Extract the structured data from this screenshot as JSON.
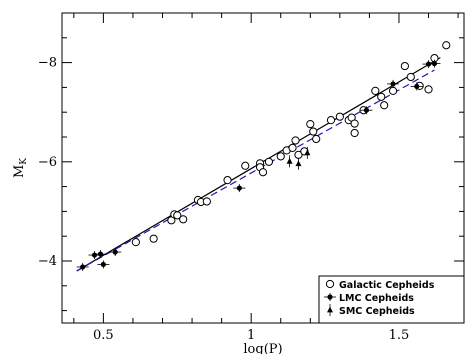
{
  "chart_data": {
    "type": "scatter",
    "xlabel": "log(P)",
    "ylabel": "M",
    "ylabel_sub": "K",
    "xlim": [
      0.36,
      1.72
    ],
    "ylim": [
      -2.75,
      -9.0
    ],
    "y_inverted": true,
    "x_ticks": [
      {
        "value": 0.5,
        "label": "0.5"
      },
      {
        "value": 1.0,
        "label": "1"
      },
      {
        "value": 1.5,
        "label": "1.5"
      }
    ],
    "y_ticks": [
      {
        "value": -4,
        "label": "−4"
      },
      {
        "value": -6,
        "label": "−6"
      },
      {
        "value": -8,
        "label": "−8"
      }
    ],
    "legend_placement": "bottom-right",
    "series": [
      {
        "name": "Galactic Cepheids",
        "marker": "open-circle",
        "points": [
          [
            0.61,
            -4.38
          ],
          [
            0.67,
            -4.45
          ],
          [
            0.73,
            -4.82
          ],
          [
            0.74,
            -4.94
          ],
          [
            0.75,
            -4.92
          ],
          [
            0.77,
            -4.84
          ],
          [
            0.82,
            -5.23
          ],
          [
            0.83,
            -5.19
          ],
          [
            0.85,
            -5.2
          ],
          [
            0.92,
            -5.63
          ],
          [
            0.98,
            -5.92
          ],
          [
            1.03,
            -5.97
          ],
          [
            1.03,
            -5.89
          ],
          [
            1.04,
            -5.79
          ],
          [
            1.06,
            -6.0
          ],
          [
            1.1,
            -6.11
          ],
          [
            1.12,
            -6.23
          ],
          [
            1.14,
            -6.28
          ],
          [
            1.15,
            -6.43
          ],
          [
            1.16,
            -6.14
          ],
          [
            1.18,
            -6.21
          ],
          [
            1.2,
            -6.76
          ],
          [
            1.21,
            -6.61
          ],
          [
            1.22,
            -6.46
          ],
          [
            1.27,
            -6.84
          ],
          [
            1.3,
            -6.91
          ],
          [
            1.33,
            -6.84
          ],
          [
            1.34,
            -6.89
          ],
          [
            1.35,
            -6.77
          ],
          [
            1.35,
            -6.58
          ],
          [
            1.38,
            -7.04
          ],
          [
            1.42,
            -7.43
          ],
          [
            1.44,
            -7.31
          ],
          [
            1.45,
            -7.14
          ],
          [
            1.48,
            -7.43
          ],
          [
            1.52,
            -7.93
          ],
          [
            1.54,
            -7.71
          ],
          [
            1.57,
            -7.53
          ],
          [
            1.6,
            -7.46
          ],
          [
            1.62,
            -8.09
          ],
          [
            1.66,
            -8.35
          ]
        ]
      },
      {
        "name": "LMC Cepheids",
        "marker": "filled-circle",
        "points": [
          [
            0.43,
            -3.88
          ],
          [
            0.47,
            -4.12
          ],
          [
            0.49,
            -4.14
          ],
          [
            0.5,
            -3.93
          ],
          [
            0.54,
            -4.18
          ],
          [
            0.96,
            -5.47
          ],
          [
            1.39,
            -7.04
          ],
          [
            1.48,
            -7.57
          ],
          [
            1.56,
            -7.52
          ],
          [
            1.6,
            -7.97
          ],
          [
            1.62,
            -7.98
          ]
        ]
      },
      {
        "name": "SMC Cepheids",
        "marker": "filled-triangle",
        "points": [
          [
            1.13,
            -6.01
          ],
          [
            1.16,
            -5.96
          ],
          [
            1.19,
            -6.18
          ]
        ]
      }
    ],
    "fits": [
      {
        "style": "solid",
        "color": "#000000",
        "x": [
          0.41,
          1.64
        ],
        "y": [
          -3.8,
          -8.1
        ]
      },
      {
        "style": "dashed",
        "color": "#1a1ab8",
        "x": [
          0.41,
          1.62
        ],
        "y": [
          -3.8,
          -7.85
        ]
      }
    ]
  }
}
